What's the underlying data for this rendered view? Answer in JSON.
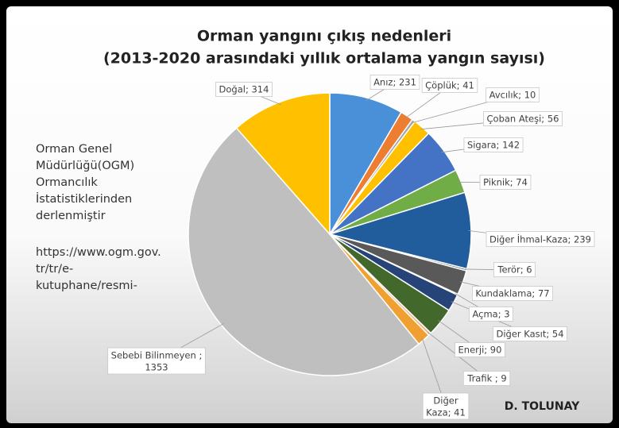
{
  "chart_data": {
    "type": "pie",
    "title": [
      "Orman yangını çıkış nedenleri",
      "(2013-2020 arasındaki yıllık ortalama yangın sayısı)"
    ],
    "values": [
      231,
      41,
      10,
      56,
      142,
      74,
      239,
      6,
      77,
      3,
      54,
      90,
      9,
      41,
      1353,
      314
    ],
    "value_labels": [
      "Anız; 231",
      "Çöplük; 41",
      "Avcılık; 10",
      "Çoban Ateşi; 56",
      "Sigara; 142",
      "Piknik; 74",
      "Diğer İhmal-Kaza; 239",
      "Terör; 6",
      "Kundaklama; 77",
      "Açma; 3",
      "Diğer Kasıt; 54",
      "Enerji; 90",
      "Trafik ; 9",
      "Diğer\nKaza; 41",
      "Sebebi Bilinmeyen ;\n1353",
      "Doğal; 314"
    ],
    "colors": [
      "#4a90d9",
      "#ed7d31",
      "#a5a5a5",
      "#ffc000",
      "#4472c4",
      "#70ad47",
      "#215d9c",
      "#636363",
      "#595959",
      "#9e7a10",
      "#264478",
      "#43682b",
      "#f4b183",
      "#f0a030",
      "#bfbfbf",
      "#ffc000"
    ],
    "note": [
      "Orman Genel",
      "Müdürlüğü(OGM)",
      "Ormancılık",
      "İstatistiklerinden",
      "derlenmiştir"
    ],
    "source": [
      "https://www.ogm.gov.",
      "tr/tr/e-",
      "kutuphane/resmi-"
    ],
    "author": "D. TOLUNAY"
  }
}
